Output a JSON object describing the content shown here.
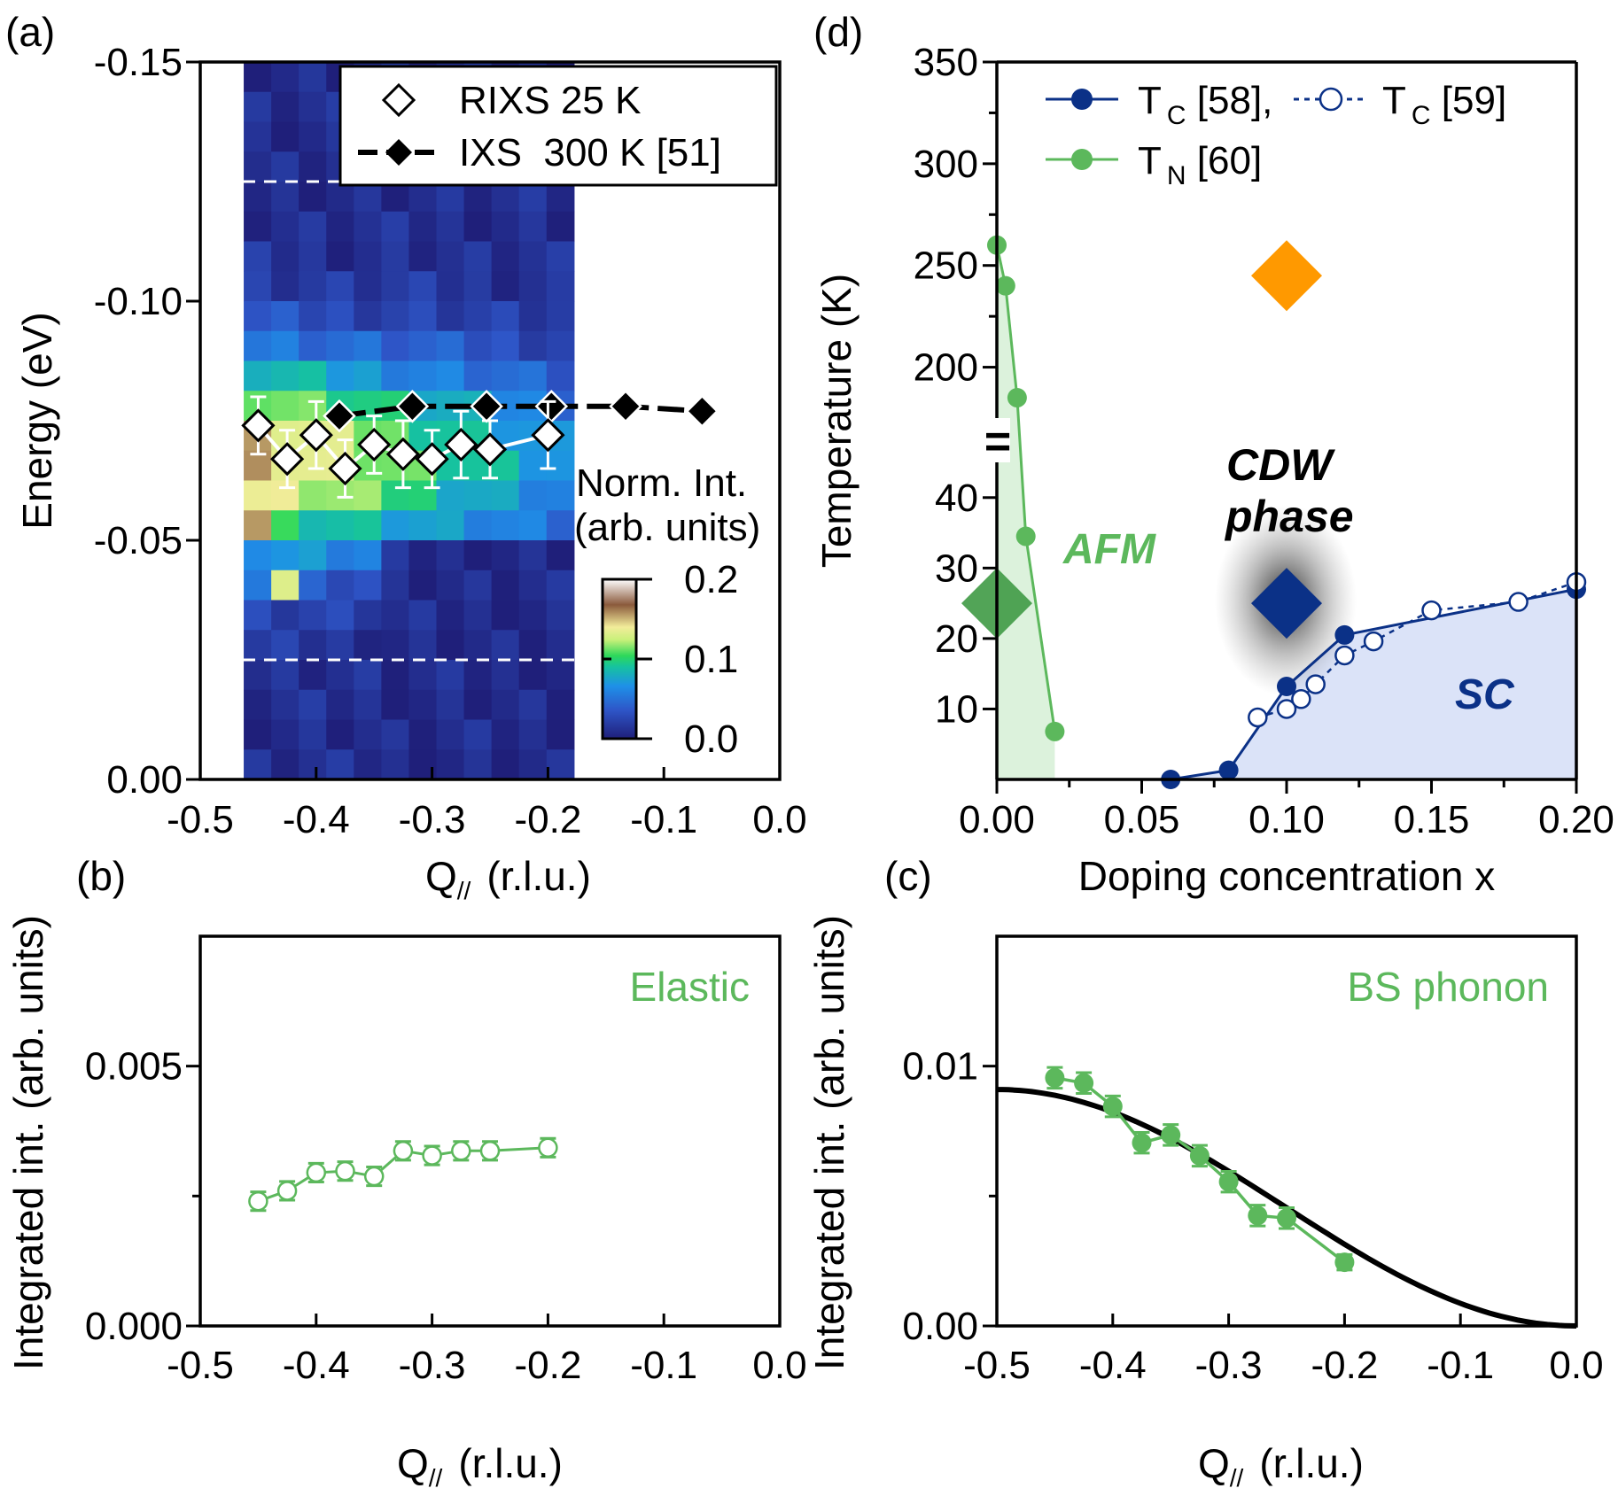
{
  "colors": {
    "green": "#5cb85c",
    "dark_green": "#3f9a45",
    "navy": "#0b3187",
    "orange": "#ff9900",
    "black": "#000000",
    "afm_fill": "#dcf2dc",
    "sc_fill": "#dbe3f8"
  },
  "chart_data": [
    {
      "id": "a",
      "panel_label": "(a)",
      "type": "heatmap",
      "xlabel_main": "Q",
      "xlabel_sub": "//",
      "xlabel_unit": "(r.l.u.)",
      "ylabel": "Energy (eV)",
      "xlim": [
        -0.5,
        0.0
      ],
      "ylim": [
        0.0,
        -0.15
      ],
      "xticks": [
        "-0.5",
        "-0.4",
        "-0.3",
        "-0.2",
        "-0.1",
        "0.0"
      ],
      "xtick_values": [
        -0.5,
        -0.4,
        -0.3,
        -0.2,
        -0.1,
        0.0
      ],
      "yticks": [
        "0.00",
        "-0.05",
        "-0.10",
        "-0.15"
      ],
      "ytick_values": [
        0.0,
        -0.05,
        -0.1,
        -0.15
      ],
      "heatmap_extent": {
        "q_min": -0.4625,
        "q_max": -0.1775,
        "e_min": 0.0,
        "e_max": -0.15
      },
      "colorbar_title": [
        "Norm. Int.",
        "(arb. units)"
      ],
      "colorbar_ticks": [
        "0.0",
        "0.1",
        "0.2"
      ],
      "colorbar_tick_values": [
        0.0,
        0.1,
        0.2
      ],
      "dashed_lines_energy": [
        -0.125,
        -0.025
      ],
      "series": [
        {
          "name": "RIXS 25 K",
          "marker": "open-diamond",
          "x": [
            -0.45,
            -0.425,
            -0.4,
            -0.375,
            -0.35,
            -0.325,
            -0.3,
            -0.275,
            -0.25,
            -0.2
          ],
          "y": [
            -0.074,
            -0.067,
            -0.072,
            -0.065,
            -0.07,
            -0.068,
            -0.067,
            -0.07,
            -0.069,
            -0.072
          ],
          "err": [
            0.006,
            0.006,
            0.007,
            0.006,
            0.006,
            0.007,
            0.006,
            0.007,
            0.006,
            0.007
          ]
        },
        {
          "name": "IXS  300 K [51]",
          "marker": "filled-diamond",
          "x": [
            -0.38,
            -0.317,
            -0.253,
            -0.197,
            -0.133,
            -0.067
          ],
          "y": [
            -0.076,
            -0.078,
            -0.078,
            -0.078,
            -0.078,
            -0.077
          ]
        }
      ]
    },
    {
      "id": "b",
      "panel_label": "(b)",
      "type": "line",
      "annotation": "Elastic",
      "xlabel_main": "Q",
      "xlabel_sub": "//",
      "xlabel_unit": "(r.l.u.)",
      "ylabel": "Integrated int. (arb. units)",
      "xlim": [
        -0.5,
        0.0
      ],
      "ylim": [
        0.0,
        0.0075
      ],
      "xticks": [
        "-0.5",
        "-0.4",
        "-0.3",
        "-0.2",
        "-0.1",
        "0.0"
      ],
      "xtick_values": [
        -0.5,
        -0.4,
        -0.3,
        -0.2,
        -0.1,
        0.0
      ],
      "yticks": [
        "0.000",
        "0.005"
      ],
      "ytick_values": [
        0.0,
        0.005
      ],
      "series": [
        {
          "name": "Elastic",
          "marker": "open-circle",
          "x": [
            -0.45,
            -0.425,
            -0.4,
            -0.375,
            -0.35,
            -0.325,
            -0.3,
            -0.275,
            -0.25,
            -0.2
          ],
          "y": [
            0.0024,
            0.0026,
            0.00295,
            0.00298,
            0.00288,
            0.00337,
            0.00328,
            0.00337,
            0.00337,
            0.00343
          ],
          "err": [
            0.00018,
            0.00018,
            0.00018,
            0.00018,
            0.00018,
            0.00018,
            0.00018,
            0.00018,
            0.00018,
            0.00018
          ]
        }
      ]
    },
    {
      "id": "c",
      "panel_label": "(c)",
      "type": "line",
      "annotation": "BS phonon",
      "xlabel_main": "Q",
      "xlabel_sub": "//",
      "xlabel_unit": "(r.l.u.)",
      "ylabel": "Integrated int. (arb. units)",
      "xlim": [
        -0.5,
        0.0
      ],
      "ylim": [
        0.0,
        0.015
      ],
      "xticks": [
        "-0.5",
        "-0.4",
        "-0.3",
        "-0.2",
        "-0.1",
        "0.0"
      ],
      "xtick_values": [
        -0.5,
        -0.4,
        -0.3,
        -0.2,
        -0.1,
        0.0
      ],
      "yticks": [
        "0.00",
        "0.01"
      ],
      "ytick_values": [
        0.0,
        0.01
      ],
      "series": [
        {
          "name": "BS phonon",
          "marker": "filled-circle",
          "x": [
            -0.45,
            -0.425,
            -0.4,
            -0.375,
            -0.35,
            -0.325,
            -0.3,
            -0.275,
            -0.25,
            -0.2
          ],
          "y": [
            0.00955,
            0.00935,
            0.00845,
            0.00705,
            0.00735,
            0.00655,
            0.00555,
            0.00425,
            0.00415,
            0.00245
          ],
          "err": [
            0.0004,
            0.0004,
            0.0004,
            0.0004,
            0.0004,
            0.0004,
            0.0004,
            0.0004,
            0.0004,
            0.0003
          ]
        }
      ],
      "curve": {
        "name": "model",
        "amplitude": 0.0091,
        "form": "A*sin^2(pi*q)"
      }
    },
    {
      "id": "d",
      "panel_label": "(d)",
      "type": "line",
      "xlabel": "Doping concentration x",
      "ylabel": "Temperature (K)",
      "xlim": [
        0.0,
        0.2
      ],
      "ylim_lower": [
        0,
        45
      ],
      "ylim_upper": [
        175,
        350
      ],
      "xticks": [
        "0.00",
        "0.05",
        "0.10",
        "0.15",
        "0.20"
      ],
      "xtick_values": [
        0.0,
        0.05,
        0.1,
        0.15,
        0.2
      ],
      "yticks_lower": [
        "10",
        "20",
        "30",
        "40"
      ],
      "ytick_values_lower": [
        10,
        20,
        30,
        40
      ],
      "yticks_upper": [
        "200",
        "250",
        "300",
        "350"
      ],
      "ytick_values_upper": [
        200,
        250,
        300,
        350
      ],
      "axis_break_mark": "=",
      "legend": [
        {
          "main": "T",
          "sub": "C",
          "ref": " [58],"
        },
        {
          "main": "T",
          "sub": "C",
          "ref": " [59]"
        },
        {
          "main": "T",
          "sub": "N",
          "ref": " [60]"
        }
      ],
      "series": [
        {
          "name": "TC [58]",
          "marker": "filled-circle",
          "x": [
            0.06,
            0.08,
            0.1,
            0.12,
            0.2
          ],
          "y": [
            0.0,
            1.3,
            13.2,
            20.5,
            27.0
          ]
        },
        {
          "name": "TC [59]",
          "marker": "open-circle",
          "x": [
            0.09,
            0.1,
            0.105,
            0.11,
            0.12,
            0.13,
            0.15,
            0.18,
            0.2
          ],
          "y": [
            8.8,
            10.0,
            11.4,
            13.5,
            17.6,
            19.6,
            24.0,
            25.2,
            28.0
          ]
        },
        {
          "name": "TN [60]",
          "marker": "filled-circle",
          "x": [
            0.0,
            0.003,
            0.007,
            0.01,
            0.02
          ],
          "y": [
            260,
            240,
            185,
            34.5,
            6.8
          ]
        }
      ],
      "regions": [
        {
          "label": "AFM"
        },
        {
          "label": "SC"
        }
      ],
      "cdw_label": [
        "CDW",
        "phase"
      ],
      "markers": [
        {
          "name": "CDW onset (RIXS)",
          "x": 0.1,
          "y": 245
        },
        {
          "name": "RIXS 25 K",
          "x": 0.1,
          "y": 25
        },
        {
          "name": "parent 25 K",
          "x": 0.0,
          "y": 25
        }
      ]
    }
  ]
}
